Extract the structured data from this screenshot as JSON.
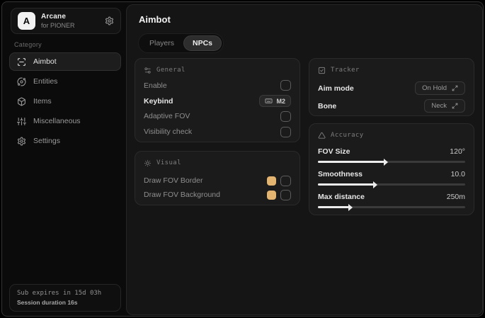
{
  "app": {
    "logo_letter": "A",
    "name": "Arcane",
    "subtitle": "for PIONER"
  },
  "sidebar": {
    "category_label": "Category",
    "items": [
      {
        "label": "Aimbot",
        "icon": "scan-icon",
        "active": true
      },
      {
        "label": "Entities",
        "icon": "orbit-icon",
        "active": false
      },
      {
        "label": "Items",
        "icon": "package-icon",
        "active": false
      },
      {
        "label": "Miscellaneous",
        "icon": "sliders-icon",
        "active": false
      },
      {
        "label": "Settings",
        "icon": "gear-icon",
        "active": false
      }
    ],
    "footer": {
      "sub_expires": "Sub expires in 15d 03h",
      "session_duration": "Session duration 16s"
    }
  },
  "main": {
    "title": "Aimbot",
    "tabs": [
      {
        "label": "Players",
        "active": false
      },
      {
        "label": "NPCs",
        "active": true
      }
    ],
    "cards": {
      "general": {
        "title": "General",
        "icon": "sliders-dots-icon",
        "rows": [
          {
            "label": "Enable",
            "control": "checkbox",
            "checked": false
          },
          {
            "label": "Keybind",
            "control": "keybind",
            "value": "M2"
          },
          {
            "label": "Adaptive FOV",
            "control": "checkbox",
            "checked": false
          },
          {
            "label": "Visibility check",
            "control": "checkbox",
            "checked": false
          }
        ]
      },
      "visual": {
        "title": "Visual",
        "icon": "sun-icon",
        "rows": [
          {
            "label": "Draw FOV Border",
            "control": "color-checkbox",
            "color": "#e3b46f",
            "checked": false
          },
          {
            "label": "Draw FOV Background",
            "control": "color-checkbox",
            "color": "#e3b46f",
            "checked": false
          }
        ]
      },
      "tracker": {
        "title": "Tracker",
        "icon": "frame-icon",
        "rows": [
          {
            "label": "Aim mode",
            "value": "On Hold"
          },
          {
            "label": "Bone",
            "value": "Neck"
          }
        ]
      },
      "accuracy": {
        "title": "Accuracy",
        "icon": "triangle-icon",
        "rows": [
          {
            "label": "FOV Size",
            "value": "120°",
            "fill_percent": 45
          },
          {
            "label": "Smoothness",
            "value": "10.0",
            "fill_percent": 38
          },
          {
            "label": "Max distance",
            "value": "250m",
            "fill_percent": 21
          }
        ]
      }
    }
  },
  "colors": {
    "accent": "#e3b46f"
  }
}
